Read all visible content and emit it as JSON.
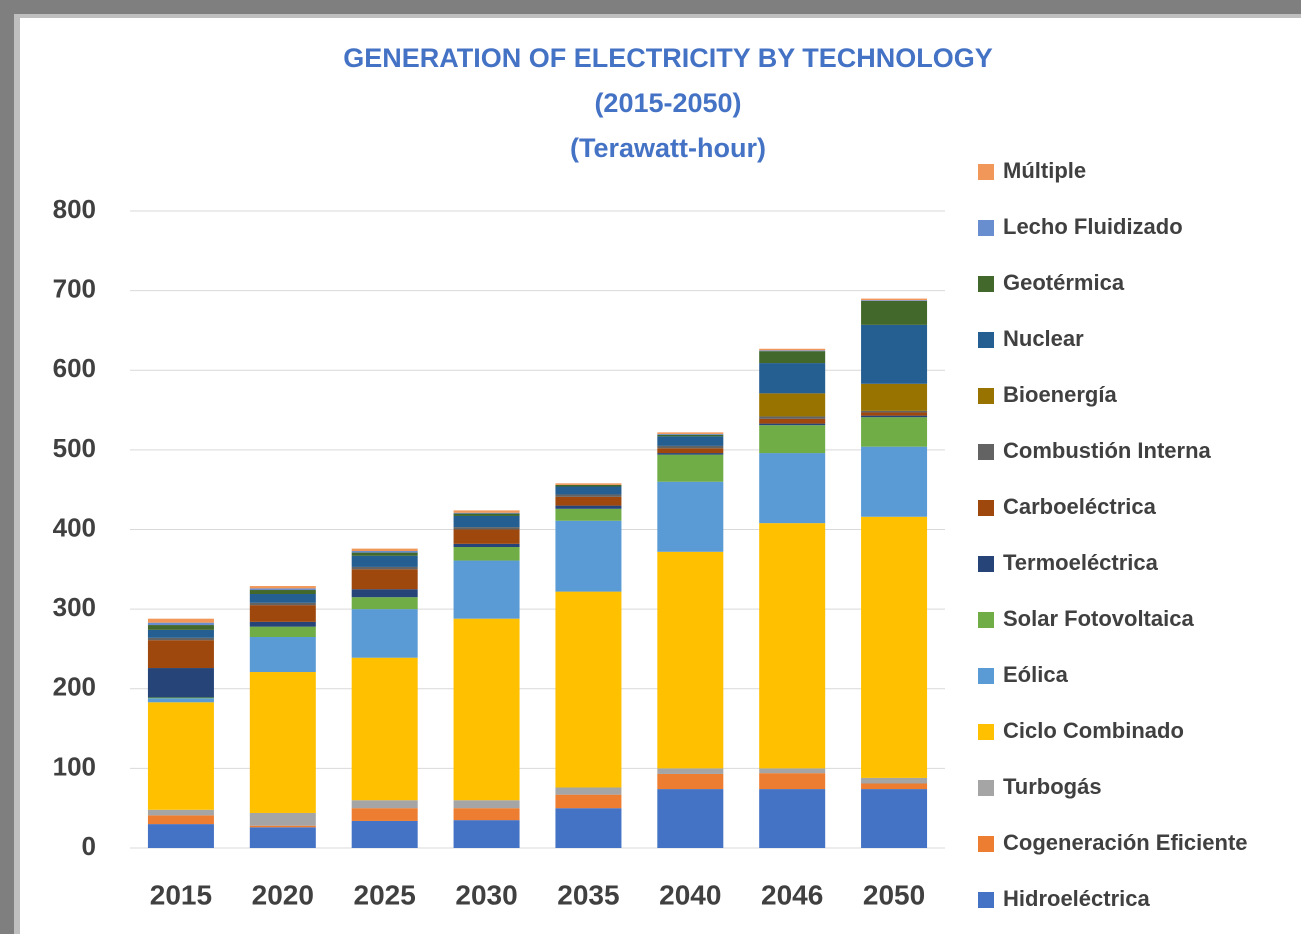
{
  "chart_data": {
    "type": "stacked_bar",
    "title": [
      "GENERATION OF ELECTRICITY BY TECHNOLOGY",
      "(2015-2050)",
      "(Terawatt-hour)"
    ],
    "categories": [
      "2015",
      "2020",
      "2025",
      "2030",
      "2035",
      "2040",
      "2046",
      "2050"
    ],
    "series": [
      {
        "name": "Hidroeléctrica",
        "color": "#4472c4",
        "values": [
          30,
          26,
          34,
          35,
          50,
          74,
          74,
          74
        ]
      },
      {
        "name": "Cogeneración Eficiente",
        "color": "#ed7d31",
        "values": [
          11,
          2,
          16,
          15,
          17,
          19,
          20,
          7
        ]
      },
      {
        "name": "Turbogás",
        "color": "#a5a5a5",
        "values": [
          7,
          16,
          10,
          10,
          9,
          7,
          6,
          7
        ]
      },
      {
        "name": "Ciclo Combinado",
        "color": "#ffc000",
        "values": [
          135,
          177,
          179,
          228,
          246,
          272,
          308,
          328
        ]
      },
      {
        "name": "Eólica",
        "color": "#5b9bd5",
        "values": [
          5,
          44,
          61,
          73,
          89,
          88,
          88,
          88
        ]
      },
      {
        "name": "Solar Fotovoltaica",
        "color": "#70ad47",
        "values": [
          1,
          13,
          15,
          17,
          15,
          34,
          35,
          37
        ]
      },
      {
        "name": "Termoeléctrica",
        "color": "#264478",
        "values": [
          37,
          6,
          10,
          4,
          4,
          2,
          2,
          2
        ]
      },
      {
        "name": "Carboeléctrica",
        "color": "#9e480e",
        "values": [
          35,
          21,
          25,
          18,
          11,
          6,
          6,
          4
        ]
      },
      {
        "name": "Combustión Interna",
        "color": "#636363",
        "values": [
          3,
          3,
          3,
          3,
          3,
          3,
          3,
          2
        ]
      },
      {
        "name": "Bioenergía",
        "color": "#997300",
        "values": [
          0,
          0,
          0,
          0,
          0,
          0,
          29,
          34
        ]
      },
      {
        "name": "Nuclear",
        "color": "#255e91",
        "values": [
          10,
          11,
          14,
          14,
          10,
          12,
          38,
          74
        ]
      },
      {
        "name": "Geotérmica",
        "color": "#43682b",
        "values": [
          6,
          5,
          4,
          3,
          2,
          2,
          15,
          30
        ]
      },
      {
        "name": "Lecho Fluidizado",
        "color": "#698ed0",
        "values": [
          3,
          2,
          2,
          1,
          0,
          1,
          1,
          1
        ]
      },
      {
        "name": "Múltiple",
        "color": "#f1975a",
        "values": [
          5,
          3,
          3,
          3,
          2,
          2,
          2,
          2
        ]
      }
    ],
    "ylim": [
      0,
      800
    ],
    "yticks": [
      0,
      100,
      200,
      300,
      400,
      500,
      600,
      700,
      800
    ],
    "grid": true,
    "legend": "right"
  }
}
